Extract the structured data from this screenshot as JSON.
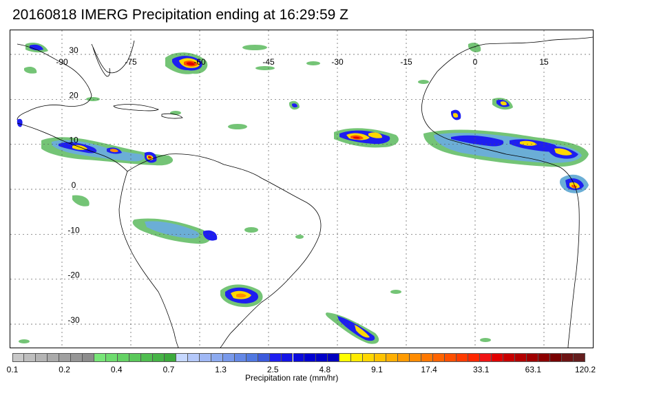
{
  "title": "20160818 IMERG Precipitation ending at 16:29:59 Z",
  "map": {
    "longitude_labels": [
      {
        "text": "-90",
        "lon": -90
      },
      {
        "text": "-75",
        "lon": -75
      },
      {
        "text": "-60",
        "lon": -60
      },
      {
        "text": "-45",
        "lon": -45
      },
      {
        "text": "-30",
        "lon": -30
      },
      {
        "text": "-15",
        "lon": -15
      },
      {
        "text": "0",
        "lon": 0
      },
      {
        "text": "15",
        "lon": 15
      }
    ],
    "latitude_labels": [
      {
        "text": "30",
        "lat": 30
      },
      {
        "text": "20",
        "lat": 20
      },
      {
        "text": "10",
        "lat": 10
      },
      {
        "text": "0",
        "lat": 0
      },
      {
        "text": "-10",
        "lat": -10
      },
      {
        "text": "-20",
        "lat": -20
      },
      {
        "text": "-30",
        "lat": -30
      }
    ],
    "grid": true,
    "coastline_color": "#000000",
    "precip_colors": {
      "light_green": "#74c476",
      "light_blue": "#6baed6",
      "blue": "#0000cd",
      "yellow": "#ffff00",
      "orange": "#ff8c00",
      "red": "#e31a1c"
    }
  },
  "colorbar": {
    "title": "Precipitation rate (mm/hr)",
    "colors": [
      "#c8c8c8",
      "#bebebe",
      "#b4b4b4",
      "#aaaaaa",
      "#a0a0a0",
      "#969696",
      "#8c8c8c",
      "#78e678",
      "#6edc6e",
      "#64d264",
      "#5ac85a",
      "#50be50",
      "#46b446",
      "#3caa3c",
      "#c6d8ff",
      "#b4c8fa",
      "#a0b8f5",
      "#8caaf0",
      "#7899eb",
      "#6488e6",
      "#5078e1",
      "#3c5adc",
      "#1e1ef0",
      "#1414e6",
      "#0a0adc",
      "#0000d2",
      "#0000c8",
      "#0000be",
      "#ffff00",
      "#ffec00",
      "#ffd700",
      "#ffc300",
      "#ffaf00",
      "#ff9b00",
      "#ff8c00",
      "#ff7800",
      "#ff6400",
      "#ff5000",
      "#ff3c00",
      "#ff2800",
      "#f01414",
      "#e10000",
      "#c80000",
      "#b40000",
      "#a00000",
      "#8c0000",
      "#780000",
      "#6e1414",
      "#641e1e"
    ],
    "labels": [
      "0.1",
      "0.2",
      "0.4",
      "0.7",
      "1.3",
      "2.5",
      "4.8",
      "9.1",
      "17.4",
      "33.1",
      "63.1",
      "120.2"
    ]
  }
}
